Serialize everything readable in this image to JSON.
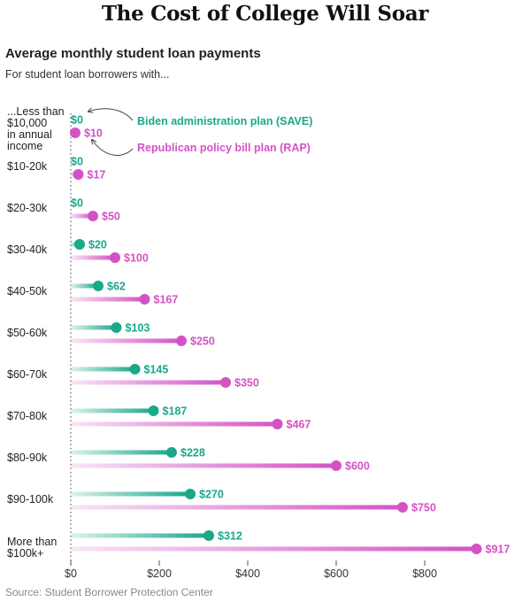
{
  "headline": "The Cost of College Will Soar",
  "subtitle": "Average monthly student loan payments",
  "intro": "For student loan borrowers with...",
  "source": "Source: Student Borrower Protection Center",
  "colors": {
    "save": "#1aa889",
    "rap": "#d452c6"
  },
  "legend": {
    "save": "Biden administration plan (SAVE)",
    "rap": "Republican policy bill plan (RAP)"
  },
  "first_row_label_lines": [
    "...Less than",
    "$10,000",
    "in annual",
    "income"
  ],
  "last_row_label_lines": [
    "More than",
    "$100k+"
  ],
  "chart_data": {
    "type": "bar",
    "categories": [
      "...Less than $10,000 in annual income",
      "$10-20k",
      "$20-30k",
      "$30-40k",
      "$40-50k",
      "$50-60k",
      "$60-70k",
      "$70-80k",
      "$80-90k",
      "$90-100k",
      "More than $100k+"
    ],
    "series": [
      {
        "name": "Biden administration plan (SAVE)",
        "values": [
          0,
          0,
          0,
          20,
          62,
          103,
          145,
          187,
          228,
          270,
          312
        ],
        "labels": [
          "$0",
          "$0",
          "$0",
          "$20",
          "$62",
          "$103",
          "$145",
          "$187",
          "$228",
          "$270",
          "$312"
        ]
      },
      {
        "name": "Republican policy bill plan (RAP)",
        "values": [
          10,
          17,
          50,
          100,
          167,
          250,
          350,
          467,
          600,
          750,
          917
        ],
        "labels": [
          "$10",
          "$17",
          "$50",
          "$100",
          "$167",
          "$250",
          "$350",
          "$467",
          "$600",
          "$750",
          "$917"
        ]
      }
    ],
    "xlim": [
      0,
      917
    ],
    "xticks": [
      0,
      200,
      400,
      600,
      800
    ],
    "xtick_labels": [
      "$0",
      "$200",
      "$400",
      "$600",
      "$800"
    ],
    "grid": false
  }
}
